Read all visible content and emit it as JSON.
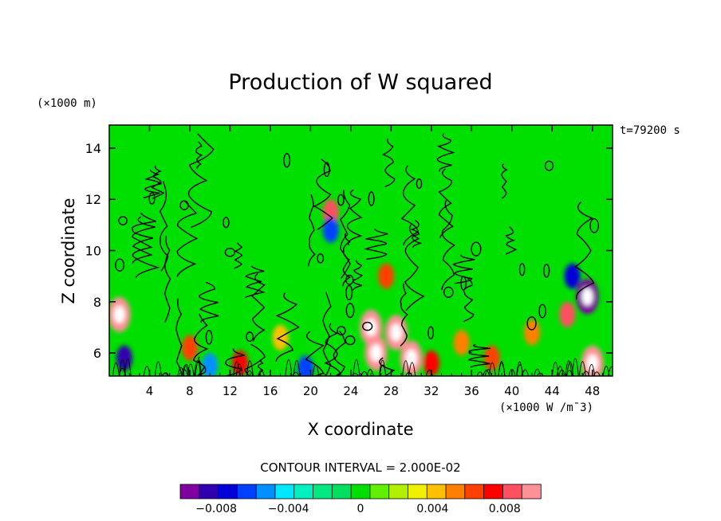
{
  "chart_data": {
    "type": "heatmap",
    "title": "Production of W squared",
    "xlabel": "X coordinate",
    "ylabel": "Z coordinate",
    "y_unit": "(×1000 m)",
    "value_unit": "(×1000 W /m¯3)",
    "time_label": "t=79200 s",
    "contour_interval_label": "CONTOUR INTERVAL = 2.000E-02",
    "xlim": [
      0,
      50
    ],
    "ylim": [
      5.1,
      14.9
    ],
    "x_ticks": [
      "4",
      "8",
      "12",
      "16",
      "20",
      "24",
      "28",
      "32",
      "36",
      "40",
      "44",
      "48"
    ],
    "y_ticks": [
      "6",
      "8",
      "10",
      "12",
      "14"
    ],
    "x_tick_values": [
      4,
      8,
      12,
      16,
      20,
      24,
      28,
      32,
      36,
      40,
      44,
      48
    ],
    "y_tick_values": [
      6,
      8,
      10,
      12,
      14
    ],
    "colorbar": {
      "min": -0.01,
      "max": 0.01,
      "tick_labels": [
        "−0.008",
        "−0.004",
        "0",
        "0.004",
        "0.008"
      ],
      "tick_values": [
        -0.008,
        -0.004,
        0,
        0.004,
        0.008
      ],
      "colors": [
        "#8000a0",
        "#3000b0",
        "#0000d8",
        "#0040ff",
        "#0090ff",
        "#00e8ff",
        "#00f0c0",
        "#00ea80",
        "#00e060",
        "#00e000",
        "#60f000",
        "#b0f000",
        "#f0f000",
        "#ffc000",
        "#ff8000",
        "#ff4000",
        "#ff0000",
        "#ff5060",
        "#ff9098"
      ]
    },
    "background_value": 0,
    "features": [
      {
        "x": 1.0,
        "z": 7.5,
        "value": 0.009
      },
      {
        "x": 1.5,
        "z": 5.8,
        "value": -0.008
      },
      {
        "x": 8.0,
        "z": 6.2,
        "value": 0.006
      },
      {
        "x": 10.0,
        "z": 5.5,
        "value": -0.005
      },
      {
        "x": 13.0,
        "z": 5.6,
        "value": 0.007
      },
      {
        "x": 17.0,
        "z": 6.6,
        "value": 0.004
      },
      {
        "x": 19.5,
        "z": 5.4,
        "value": -0.006
      },
      {
        "x": 22.0,
        "z": 11.5,
        "value": 0.008
      },
      {
        "x": 22.0,
        "z": 10.8,
        "value": -0.006
      },
      {
        "x": 26.0,
        "z": 7.0,
        "value": 0.009
      },
      {
        "x": 26.5,
        "z": 6.0,
        "value": 0.01
      },
      {
        "x": 27.5,
        "z": 9.0,
        "value": 0.006
      },
      {
        "x": 28.5,
        "z": 6.8,
        "value": 0.01
      },
      {
        "x": 30.0,
        "z": 5.8,
        "value": 0.01
      },
      {
        "x": 32.0,
        "z": 5.6,
        "value": 0.007
      },
      {
        "x": 35.0,
        "z": 6.4,
        "value": 0.005
      },
      {
        "x": 38.0,
        "z": 5.8,
        "value": 0.006
      },
      {
        "x": 42.0,
        "z": 6.8,
        "value": 0.005
      },
      {
        "x": 45.5,
        "z": 7.5,
        "value": 0.008
      },
      {
        "x": 46.0,
        "z": 9.0,
        "value": -0.007
      },
      {
        "x": 47.5,
        "z": 8.2,
        "value": -0.01
      },
      {
        "x": 48.0,
        "z": 5.6,
        "value": 0.009
      }
    ]
  }
}
